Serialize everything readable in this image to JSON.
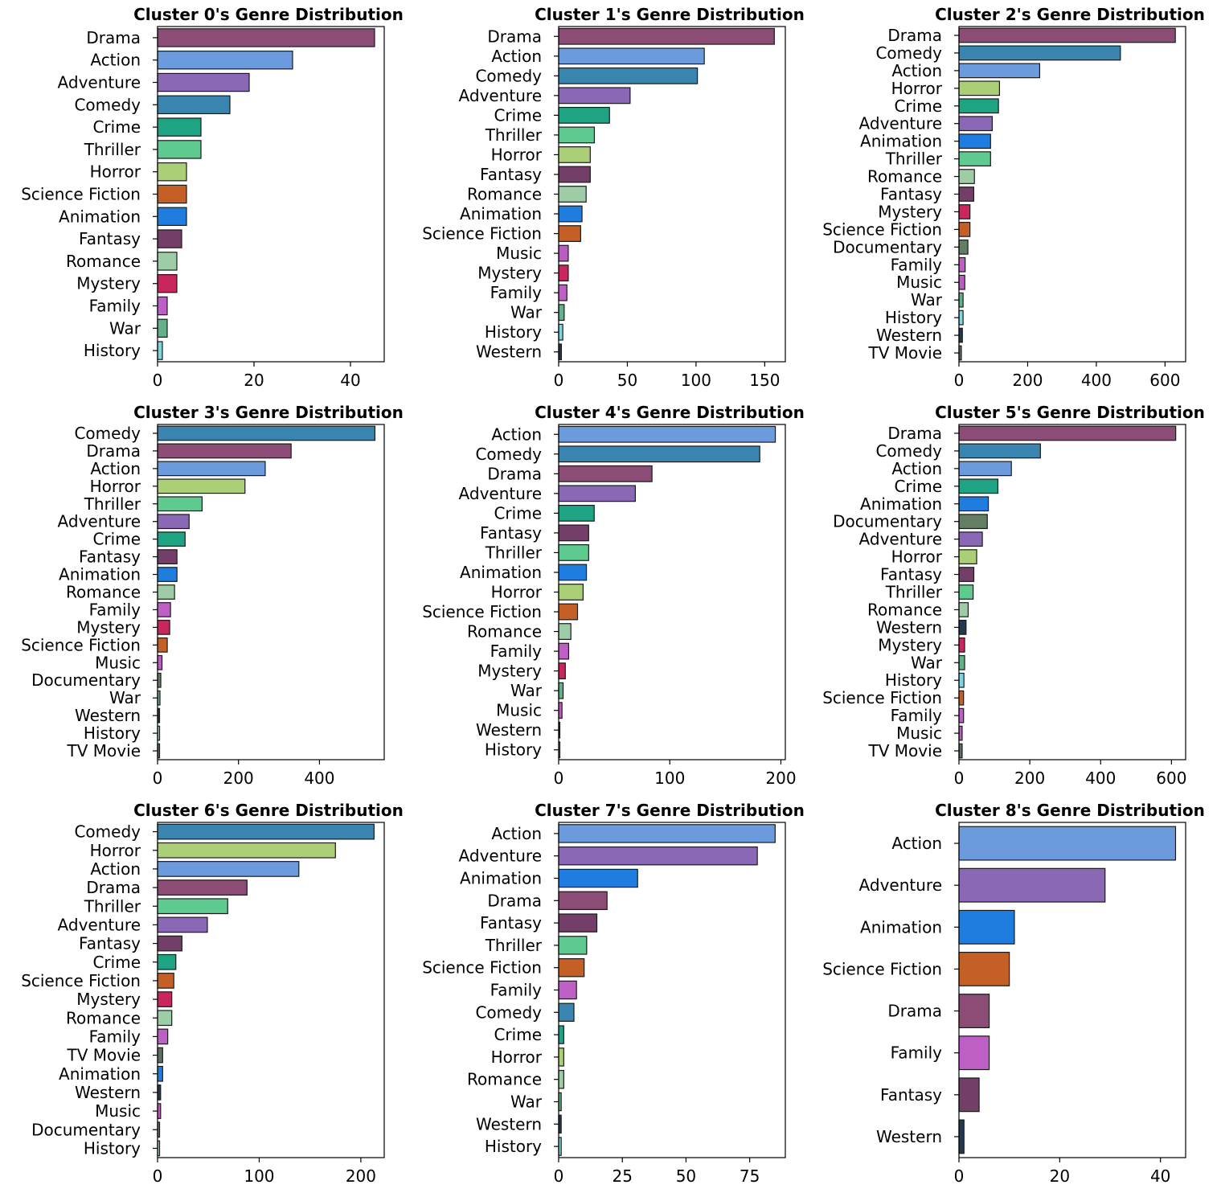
{
  "chart_data": [
    {
      "type": "bar",
      "orientation": "horizontal",
      "title": "Cluster 0's Genre Distribution",
      "categories": [
        "Drama",
        "Action",
        "Adventure",
        "Comedy",
        "Crime",
        "Thriller",
        "Horror",
        "Science Fiction",
        "Animation",
        "Fantasy",
        "Romance",
        "Mystery",
        "Family",
        "War",
        "History"
      ],
      "values": [
        45,
        28,
        19,
        15,
        9,
        9,
        6,
        6,
        6,
        5,
        4,
        4,
        2,
        2,
        1
      ],
      "xlim": [
        0,
        47
      ],
      "xticks": [
        0,
        20,
        40
      ]
    },
    {
      "type": "bar",
      "orientation": "horizontal",
      "title": "Cluster 1's Genre Distribution",
      "categories": [
        "Drama",
        "Action",
        "Comedy",
        "Adventure",
        "Crime",
        "Thriller",
        "Horror",
        "Fantasy",
        "Romance",
        "Animation",
        "Science Fiction",
        "Music",
        "Mystery",
        "Family",
        "War",
        "History",
        "Western"
      ],
      "values": [
        157,
        106,
        101,
        52,
        37,
        26,
        23,
        23,
        20,
        17,
        16,
        7,
        7,
        6,
        4,
        3,
        2
      ],
      "xlim": [
        0,
        165
      ],
      "xticks": [
        0,
        50,
        100,
        150
      ]
    },
    {
      "type": "bar",
      "orientation": "horizontal",
      "title": "Cluster 2's Genre Distribution",
      "categories": [
        "Drama",
        "Comedy",
        "Action",
        "Horror",
        "Crime",
        "Adventure",
        "Animation",
        "Thriller",
        "Romance",
        "Fantasy",
        "Mystery",
        "Science Fiction",
        "Documentary",
        "Family",
        "Music",
        "War",
        "History",
        "Western",
        "TV Movie"
      ],
      "values": [
        630,
        470,
        235,
        118,
        115,
        97,
        92,
        92,
        45,
        43,
        32,
        32,
        26,
        18,
        17,
        12,
        12,
        10,
        7
      ],
      "xlim": [
        0,
        660
      ],
      "xticks": [
        0,
        200,
        400,
        600
      ]
    },
    {
      "type": "bar",
      "orientation": "horizontal",
      "title": "Cluster 3's Genre Distribution",
      "categories": [
        "Comedy",
        "Drama",
        "Action",
        "Horror",
        "Thriller",
        "Adventure",
        "Crime",
        "Fantasy",
        "Animation",
        "Romance",
        "Family",
        "Mystery",
        "Science Fiction",
        "Music",
        "Documentary",
        "War",
        "Western",
        "History",
        "TV Movie"
      ],
      "values": [
        537,
        330,
        266,
        216,
        110,
        78,
        68,
        48,
        48,
        42,
        32,
        30,
        24,
        11,
        8,
        6,
        5,
        5,
        5
      ],
      "xlim": [
        0,
        560
      ],
      "xticks": [
        0,
        200,
        400
      ]
    },
    {
      "type": "bar",
      "orientation": "horizontal",
      "title": "Cluster 4's Genre Distribution",
      "categories": [
        "Action",
        "Comedy",
        "Drama",
        "Adventure",
        "Crime",
        "Fantasy",
        "Thriller",
        "Animation",
        "Horror",
        "Science Fiction",
        "Romance",
        "Family",
        "Mystery",
        "War",
        "Music",
        "Western",
        "History"
      ],
      "values": [
        195,
        181,
        84,
        69,
        32,
        27,
        27,
        25,
        22,
        17,
        11,
        9,
        6,
        4,
        3,
        1,
        1
      ],
      "xlim": [
        0,
        204
      ],
      "xticks": [
        0,
        100,
        200
      ]
    },
    {
      "type": "bar",
      "orientation": "horizontal",
      "title": "Cluster 5's Genre Distribution",
      "categories": [
        "Drama",
        "Comedy",
        "Action",
        "Crime",
        "Animation",
        "Documentary",
        "Adventure",
        "Horror",
        "Fantasy",
        "Thriller",
        "Romance",
        "Western",
        "Mystery",
        "War",
        "History",
        "Science Fiction",
        "Family",
        "Music",
        "TV Movie"
      ],
      "values": [
        612,
        230,
        148,
        110,
        83,
        80,
        66,
        50,
        42,
        40,
        26,
        20,
        16,
        16,
        14,
        13,
        13,
        9,
        9
      ],
      "xlim": [
        0,
        640
      ],
      "xticks": [
        0,
        200,
        400,
        600
      ]
    },
    {
      "type": "bar",
      "orientation": "horizontal",
      "title": "Cluster 6's Genre Distribution",
      "categories": [
        "Comedy",
        "Horror",
        "Action",
        "Drama",
        "Thriller",
        "Adventure",
        "Fantasy",
        "Crime",
        "Science Fiction",
        "Mystery",
        "Romance",
        "Family",
        "TV Movie",
        "Animation",
        "Western",
        "Music",
        "Documentary",
        "History"
      ],
      "values": [
        213,
        175,
        139,
        88,
        69,
        49,
        24,
        18,
        16,
        14,
        14,
        10,
        5,
        5,
        3,
        3,
        2,
        2
      ],
      "xlim": [
        0,
        223
      ],
      "xticks": [
        0,
        100,
        200
      ]
    },
    {
      "type": "bar",
      "orientation": "horizontal",
      "title": "Cluster 7's Genre Distribution",
      "categories": [
        "Action",
        "Adventure",
        "Animation",
        "Drama",
        "Fantasy",
        "Thriller",
        "Science Fiction",
        "Family",
        "Comedy",
        "Crime",
        "Horror",
        "Romance",
        "War",
        "Western",
        "History"
      ],
      "values": [
        85,
        78,
        31,
        19,
        15,
        11,
        10,
        7,
        6,
        2,
        2,
        2,
        1,
        1,
        1
      ],
      "xlim": [
        0,
        89
      ],
      "xticks": [
        0,
        25,
        50,
        75
      ]
    },
    {
      "type": "bar",
      "orientation": "horizontal",
      "title": "Cluster 8's Genre Distribution",
      "categories": [
        "Action",
        "Adventure",
        "Animation",
        "Science Fiction",
        "Drama",
        "Family",
        "Fantasy",
        "Western"
      ],
      "values": [
        43,
        29,
        11,
        10,
        6,
        6,
        4,
        1
      ],
      "xlim": [
        0,
        45
      ],
      "xticks": [
        0,
        20,
        40
      ]
    }
  ],
  "genre_colors": {
    "Drama": "#8B4C75",
    "Action": "#6B9BDD",
    "Adventure": "#8B68B6",
    "Comedy": "#3A85B0",
    "Crime": "#1EA383",
    "Thriller": "#5ECA8F",
    "Horror": "#AACF76",
    "Science Fiction": "#C45F25",
    "Animation": "#1F7DDF",
    "Fantasy": "#733F68",
    "Romance": "#9DCCA6",
    "Mystery": "#C8265D",
    "Family": "#BE5FC6",
    "War": "#64B08A",
    "History": "#7DD6DE",
    "Music": "#BB5CC0",
    "Western": "#24384F",
    "Documentary": "#637E63",
    "TV Movie": "#5F6F64"
  }
}
